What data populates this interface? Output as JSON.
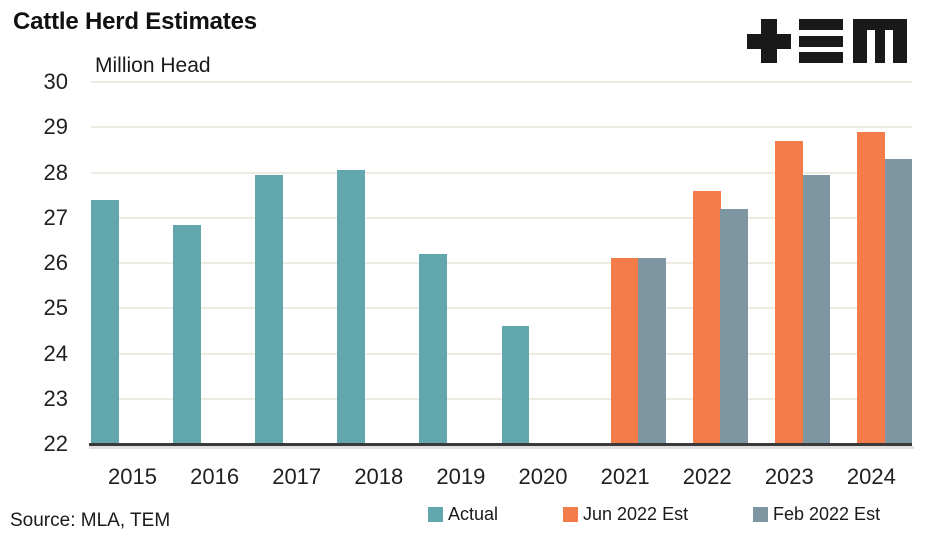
{
  "header": {
    "title": "Cattle Herd Estimates",
    "logo_icon": "tem-logo"
  },
  "chart_data": {
    "type": "bar",
    "title": "Cattle Herd Estimates",
    "ylabel": "Million Head",
    "xlabel": "",
    "categories": [
      "2015",
      "2016",
      "2017",
      "2018",
      "2019",
      "2020",
      "2021",
      "2022",
      "2023",
      "2024"
    ],
    "series": [
      {
        "name": "Actual",
        "color": "#62A7AD",
        "values": [
          27.4,
          26.85,
          27.95,
          28.05,
          26.2,
          24.6,
          null,
          null,
          null,
          null
        ]
      },
      {
        "name": "Jun 2022 Est",
        "color": "#F47C4A",
        "values": [
          null,
          null,
          null,
          null,
          null,
          null,
          26.1,
          27.6,
          28.7,
          28.9
        ]
      },
      {
        "name": "Feb 2022 Est",
        "color": "#7D96A2",
        "values": [
          null,
          null,
          null,
          null,
          null,
          null,
          26.1,
          27.2,
          27.95,
          28.3
        ]
      }
    ],
    "ylim": [
      22,
      30
    ],
    "ytick_step": 1,
    "yticks": [
      22,
      23,
      24,
      25,
      26,
      27,
      28,
      29,
      30
    ],
    "grid": "horizontal",
    "legend_position": "bottom",
    "bar_grouping": "grouped"
  },
  "footer": {
    "source": "Source: MLA, TEM"
  },
  "colors": {
    "background": "#FFFFFF",
    "gridline": "#EDEBE2",
    "axis_line": "#3A3A3A",
    "text": "#1A1A1A",
    "logo": "#191919"
  }
}
